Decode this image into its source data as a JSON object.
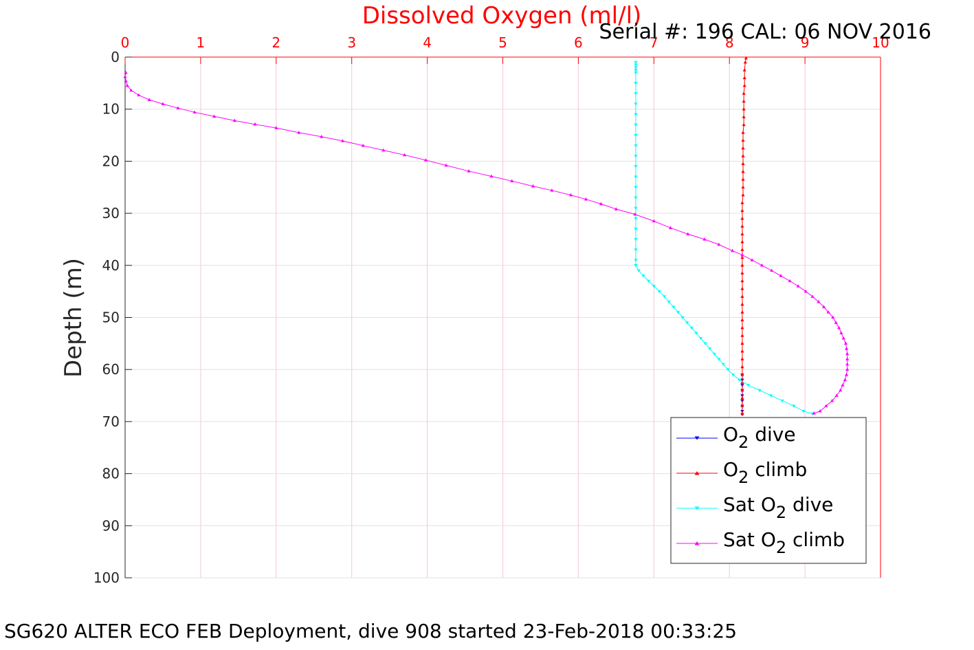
{
  "figure": {
    "top_axis_label": "Dissolved Oxygen (ml/l)",
    "serial_text": "Serial #: 196  CAL: 06 NOV 2016",
    "ylabel": "Depth (m)",
    "footer": "SG620 ALTER ECO FEB Deployment, dive 908 started 23-Feb-2018 00:33:25"
  },
  "legend": {
    "placement": "bottom-right",
    "entries": [
      {
        "base": "O",
        "sub": "2",
        "tail": " dive",
        "prefix": ""
      },
      {
        "base": "O",
        "sub": "2",
        "tail": " climb",
        "prefix": ""
      },
      {
        "base": "O",
        "sub": "2",
        "tail": " dive",
        "prefix": "Sat "
      },
      {
        "base": "O",
        "sub": "2",
        "tail": " climb",
        "prefix": "Sat "
      }
    ]
  },
  "chart_data": {
    "type": "line",
    "xlabel": "Dissolved Oxygen (ml/l)",
    "ylabel": "Depth (m)",
    "xlim": [
      0,
      10
    ],
    "ylim": [
      0,
      100
    ],
    "y_reversed": true,
    "x_axis_position": "top",
    "grid": true,
    "x_ticks": [
      0,
      1,
      2,
      3,
      4,
      5,
      6,
      7,
      8,
      9,
      10
    ],
    "y_ticks": [
      0,
      10,
      20,
      30,
      40,
      50,
      60,
      70,
      80,
      90,
      100
    ],
    "colors": {
      "axis_top": "#ff0000",
      "grid_x": "#f4c7d2",
      "grid_y": "#e0e0e0",
      "axis": "#262626"
    },
    "series": [
      {
        "key": "o2_dive",
        "color": "#0000ff",
        "marker": "triangle-down",
        "points": [
          [
            8.17,
            61
          ],
          [
            8.17,
            62
          ],
          [
            8.17,
            63
          ],
          [
            8.17,
            64
          ],
          [
            8.17,
            65
          ],
          [
            8.17,
            66
          ],
          [
            8.17,
            67
          ],
          [
            8.17,
            68
          ],
          [
            8.17,
            68.6
          ]
        ]
      },
      {
        "key": "o2_climb",
        "color": "#ff0000",
        "marker": "triangle-up",
        "points": [
          [
            8.17,
            68.5
          ],
          [
            8.17,
            67
          ],
          [
            8.17,
            65.5
          ],
          [
            8.17,
            64
          ],
          [
            8.17,
            62.5
          ],
          [
            8.17,
            61
          ],
          [
            8.17,
            59.5
          ],
          [
            8.17,
            58
          ],
          [
            8.17,
            56.5
          ],
          [
            8.17,
            55
          ],
          [
            8.17,
            53.5
          ],
          [
            8.17,
            52
          ],
          [
            8.17,
            50.5
          ],
          [
            8.17,
            49
          ],
          [
            8.17,
            47.5
          ],
          [
            8.17,
            46
          ],
          [
            8.17,
            44.5
          ],
          [
            8.17,
            43
          ],
          [
            8.17,
            41.5
          ],
          [
            8.17,
            40
          ],
          [
            8.17,
            38.5
          ],
          [
            8.17,
            37
          ],
          [
            8.17,
            35.5
          ],
          [
            8.17,
            34
          ],
          [
            8.17,
            32.5
          ],
          [
            8.17,
            31
          ],
          [
            8.17,
            29.5
          ],
          [
            8.17,
            28
          ],
          [
            8.18,
            26.5
          ],
          [
            8.18,
            25
          ],
          [
            8.18,
            23.5
          ],
          [
            8.18,
            22
          ],
          [
            8.18,
            20.5
          ],
          [
            8.18,
            19
          ],
          [
            8.18,
            17.5
          ],
          [
            8.18,
            16
          ],
          [
            8.18,
            14.5
          ],
          [
            8.19,
            13
          ],
          [
            8.19,
            11.5
          ],
          [
            8.19,
            10
          ],
          [
            8.19,
            8.5
          ],
          [
            8.19,
            7
          ],
          [
            8.2,
            5.5
          ],
          [
            8.2,
            4
          ],
          [
            8.2,
            2.5
          ],
          [
            8.21,
            1
          ],
          [
            8.22,
            0.2
          ]
        ]
      },
      {
        "key": "sat_o2_dive",
        "color": "#00ffff",
        "marker": "triangle-down",
        "points": [
          [
            6.76,
            1
          ],
          [
            6.76,
            1.5
          ],
          [
            6.76,
            2
          ],
          [
            6.76,
            2.5
          ],
          [
            6.76,
            3
          ],
          [
            6.76,
            5
          ],
          [
            6.76,
            7
          ],
          [
            6.76,
            9
          ],
          [
            6.76,
            11
          ],
          [
            6.76,
            13
          ],
          [
            6.76,
            15
          ],
          [
            6.76,
            17
          ],
          [
            6.76,
            19
          ],
          [
            6.76,
            21
          ],
          [
            6.76,
            23
          ],
          [
            6.76,
            25
          ],
          [
            6.76,
            27
          ],
          [
            6.76,
            29
          ],
          [
            6.76,
            31
          ],
          [
            6.76,
            33
          ],
          [
            6.76,
            35
          ],
          [
            6.76,
            37
          ],
          [
            6.76,
            39
          ],
          [
            6.76,
            40
          ],
          [
            6.8,
            41
          ],
          [
            6.86,
            42
          ],
          [
            6.93,
            43
          ],
          [
            7.0,
            44
          ],
          [
            7.07,
            45
          ],
          [
            7.14,
            46
          ],
          [
            7.2,
            47
          ],
          [
            7.26,
            48
          ],
          [
            7.32,
            49
          ],
          [
            7.38,
            50
          ],
          [
            7.44,
            51
          ],
          [
            7.5,
            52
          ],
          [
            7.56,
            53
          ],
          [
            7.62,
            54
          ],
          [
            7.68,
            55
          ],
          [
            7.74,
            56
          ],
          [
            7.8,
            57
          ],
          [
            7.86,
            58
          ],
          [
            7.92,
            59
          ],
          [
            7.98,
            60
          ],
          [
            8.05,
            61
          ],
          [
            8.13,
            62
          ],
          [
            8.25,
            63
          ],
          [
            8.4,
            64
          ],
          [
            8.55,
            65
          ],
          [
            8.7,
            66
          ],
          [
            8.85,
            67
          ],
          [
            8.98,
            68
          ],
          [
            9.1,
            68.5
          ]
        ]
      },
      {
        "key": "sat_o2_climb",
        "color": "#ff00ff",
        "marker": "triangle-up",
        "points": [
          [
            9.12,
            68.4
          ],
          [
            9.2,
            68
          ],
          [
            9.28,
            67
          ],
          [
            9.36,
            66
          ],
          [
            9.42,
            65
          ],
          [
            9.47,
            64
          ],
          [
            9.5,
            63
          ],
          [
            9.53,
            62
          ],
          [
            9.55,
            61
          ],
          [
            9.56,
            60
          ],
          [
            9.56,
            59
          ],
          [
            9.56,
            58
          ],
          [
            9.56,
            57
          ],
          [
            9.55,
            56
          ],
          [
            9.54,
            55
          ],
          [
            9.51,
            54
          ],
          [
            9.48,
            53
          ],
          [
            9.45,
            52
          ],
          [
            9.41,
            51
          ],
          [
            9.37,
            50
          ],
          [
            9.31,
            49
          ],
          [
            9.25,
            48
          ],
          [
            9.18,
            47
          ],
          [
            9.1,
            46
          ],
          [
            9.01,
            45
          ],
          [
            8.91,
            44
          ],
          [
            8.8,
            43
          ],
          [
            8.68,
            42
          ],
          [
            8.56,
            41
          ],
          [
            8.43,
            40
          ],
          [
            8.3,
            39
          ],
          [
            8.17,
            38
          ],
          [
            8.04,
            37.2
          ],
          [
            7.86,
            36
          ],
          [
            7.67,
            35
          ],
          [
            7.45,
            34
          ],
          [
            7.22,
            32.8
          ],
          [
            7.0,
            31.5
          ],
          [
            6.75,
            30.2
          ],
          [
            6.5,
            29.2
          ],
          [
            6.3,
            28.2
          ],
          [
            6.1,
            27.3
          ],
          [
            5.9,
            26.5
          ],
          [
            5.65,
            25.6
          ],
          [
            5.4,
            24.8
          ],
          [
            5.12,
            23.8
          ],
          [
            4.85,
            22.9
          ],
          [
            4.55,
            21.9
          ],
          [
            4.25,
            20.8
          ],
          [
            3.98,
            19.8
          ],
          [
            3.7,
            18.8
          ],
          [
            3.42,
            17.9
          ],
          [
            3.15,
            17.0
          ],
          [
            2.88,
            16.1
          ],
          [
            2.6,
            15.3
          ],
          [
            2.3,
            14.5
          ],
          [
            2.0,
            13.6
          ],
          [
            1.72,
            12.9
          ],
          [
            1.45,
            12.2
          ],
          [
            1.18,
            11.4
          ],
          [
            0.92,
            10.6
          ],
          [
            0.7,
            9.8
          ],
          [
            0.5,
            9.0
          ],
          [
            0.32,
            8.2
          ],
          [
            0.18,
            7.3
          ],
          [
            0.08,
            6.4
          ],
          [
            0.03,
            5.5
          ],
          [
            0.01,
            4.6
          ],
          [
            0.0,
            3.8
          ],
          [
            0.01,
            3.0
          ]
        ]
      }
    ]
  }
}
